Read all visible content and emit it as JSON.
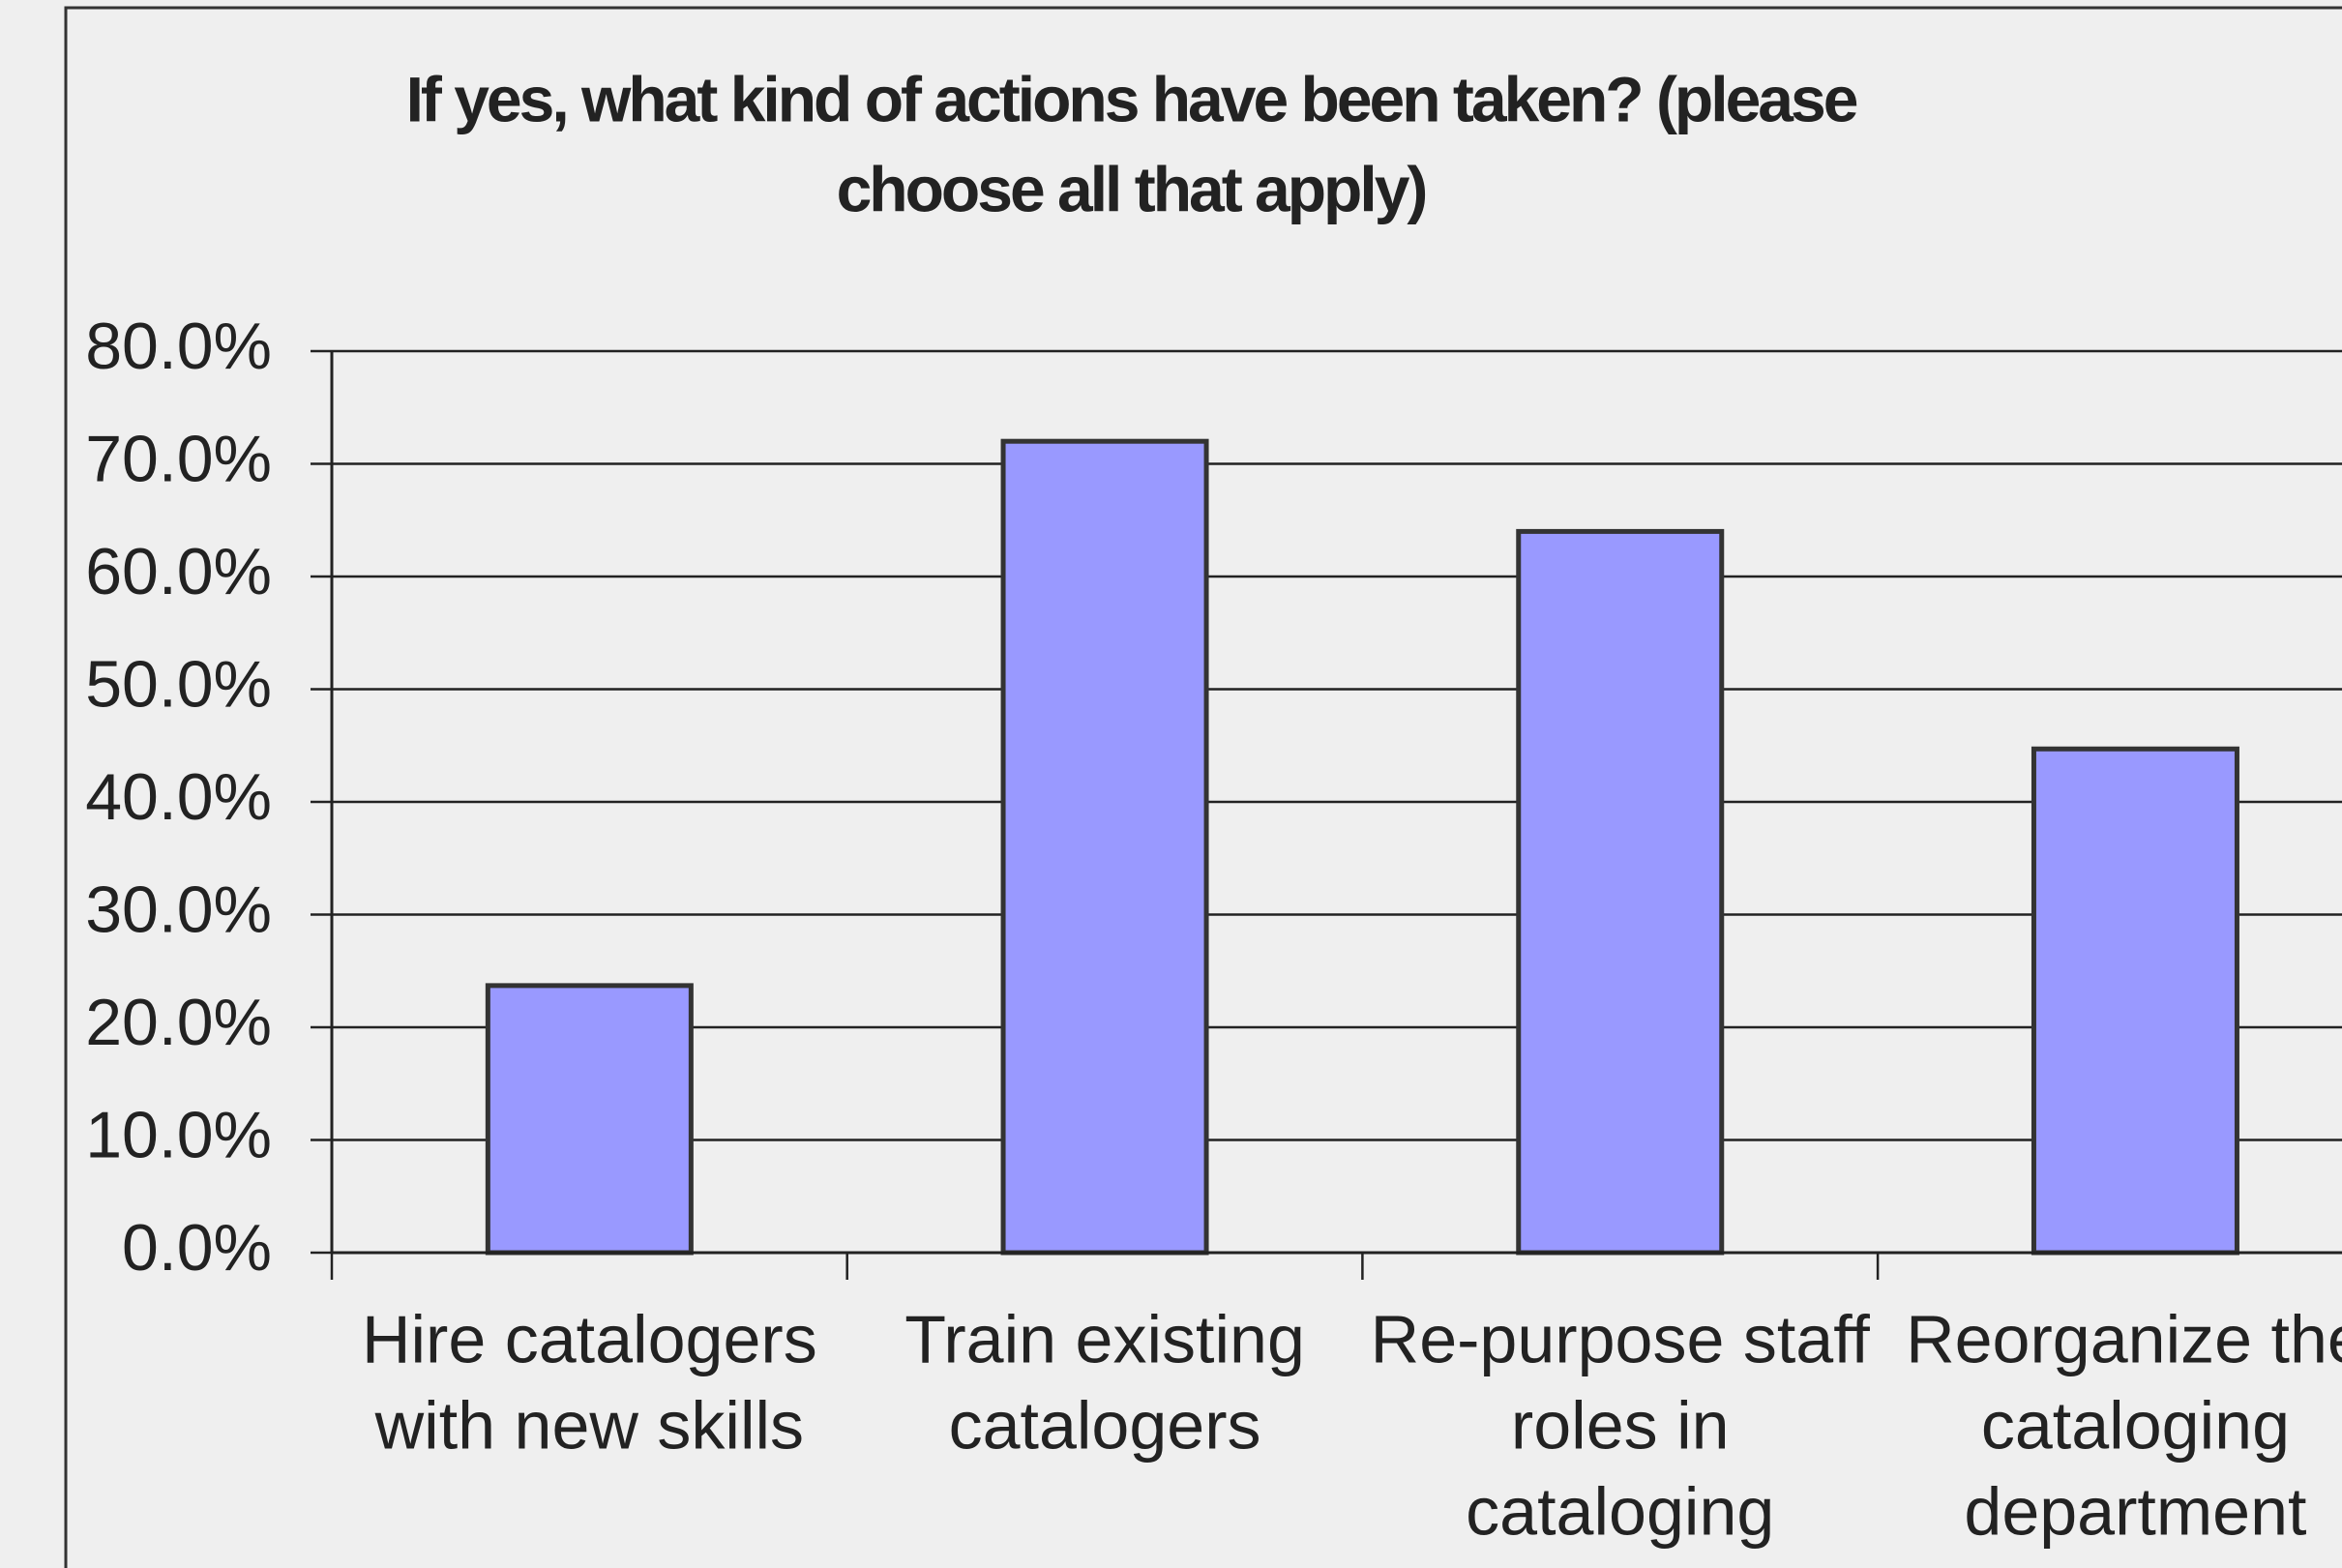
{
  "chart_data": {
    "type": "bar",
    "title": [
      "If yes, what kind of actions have been taken? (please",
      "choose all that apply)"
    ],
    "categories": [
      [
        "Hire catalogers",
        "with new skills"
      ],
      [
        "Train existing",
        "catalogers"
      ],
      [
        "Re-purpose staff",
        "roles in",
        "cataloging"
      ],
      [
        "Reorganize the",
        "cataloging",
        "department"
      ]
    ],
    "values": [
      23.7,
      72.0,
      64.0,
      44.7
    ],
    "color": "#9999ff",
    "ylim": [
      0,
      80
    ],
    "yticks": [
      {
        "value": 0,
        "label": "0.0%"
      },
      {
        "value": 10,
        "label": "10.0%"
      },
      {
        "value": 20,
        "label": "20.0%"
      },
      {
        "value": 30,
        "label": "30.0%"
      },
      {
        "value": 40,
        "label": "40.0%"
      },
      {
        "value": 50,
        "label": "50.0%"
      },
      {
        "value": 60,
        "label": "60.0%"
      },
      {
        "value": 70,
        "label": "70.0%"
      },
      {
        "value": 80,
        "label": "80.0%"
      }
    ],
    "grid": true
  }
}
